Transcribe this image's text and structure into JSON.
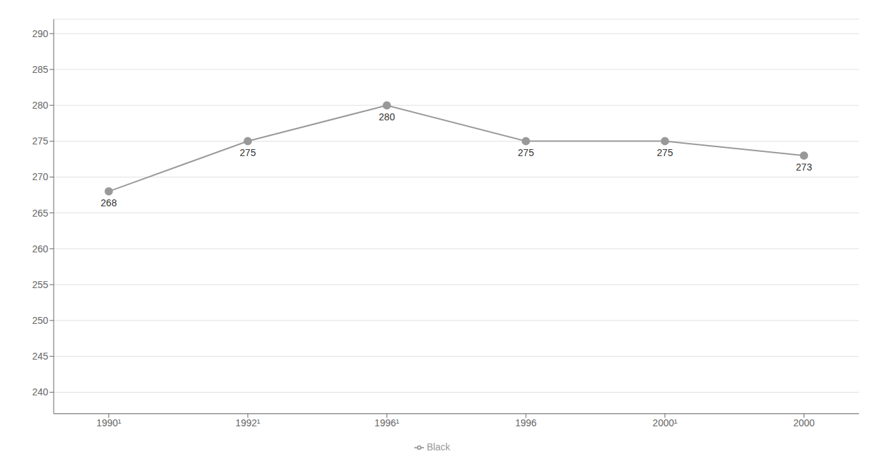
{
  "chart_data": {
    "type": "line",
    "categories": [
      "1990¹",
      "1992¹",
      "1996¹",
      "1996",
      "2000¹",
      "2000"
    ],
    "series": [
      {
        "name": "Black",
        "color": "#999999",
        "marker": "circle",
        "line_style": "solid",
        "values": [
          268,
          275,
          280,
          275,
          275,
          273
        ]
      }
    ],
    "ylim": [
      237,
      292
    ],
    "yticks": [
      240,
      245,
      250,
      255,
      260,
      265,
      270,
      275,
      280,
      285,
      290
    ],
    "grid": true,
    "legend": "bottom",
    "data_labels": true
  }
}
